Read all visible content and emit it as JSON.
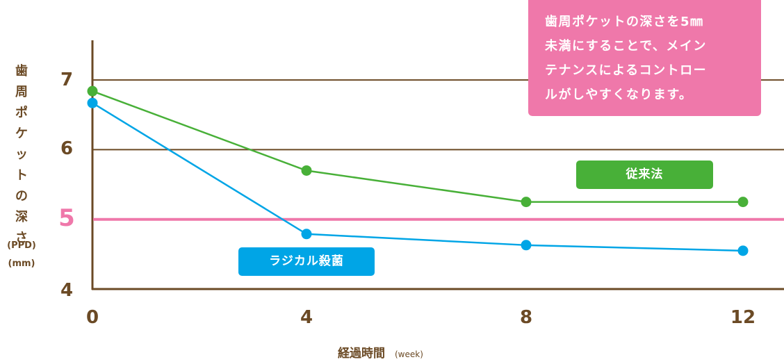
{
  "chart_data": {
    "type": "line",
    "title": "",
    "xlabel": "経過時間",
    "xlabel_unit": "(week)",
    "ylabel": "歯周ポケットの深さ",
    "ylabel_units": [
      "(PPD)",
      "(mm)"
    ],
    "x": [
      0,
      4,
      8,
      12
    ],
    "x_ticks": [
      "0",
      "4",
      "8",
      "12"
    ],
    "y_ticks": [
      "7",
      "6",
      "5",
      "4"
    ],
    "ylim": [
      4,
      7.6
    ],
    "grid": true,
    "threshold": {
      "value": 5,
      "color": "#ef78aa"
    },
    "series": [
      {
        "name": "従来法",
        "color": "#48b038",
        "values": [
          6.84,
          5.7,
          5.25,
          5.25
        ]
      },
      {
        "name": "ラジカル殺菌",
        "color": "#00a5e6",
        "values": [
          6.67,
          4.79,
          4.63,
          4.55
        ]
      }
    ],
    "annotation": [
      "歯周ポケットの深さを5㎜",
      "未満にすることで、メイン",
      "テナンスによるコントロー",
      "ルがしやすくなります。"
    ]
  },
  "colors": {
    "axis": "#6b4a25",
    "threshold": "#ef78aa",
    "green": "#48b038",
    "blue": "#00a5e6"
  }
}
